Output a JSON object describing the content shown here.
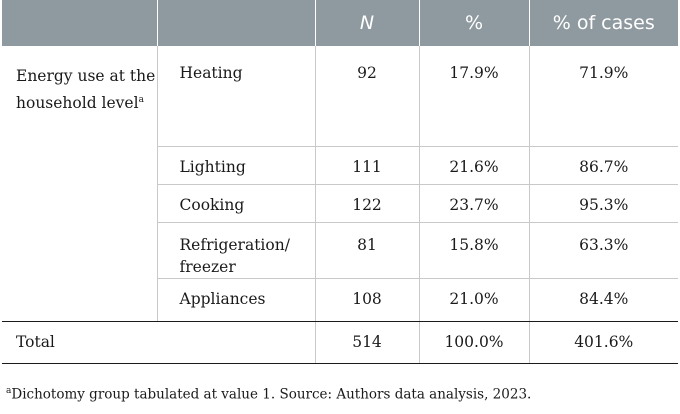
{
  "header": {
    "col_blank1": "",
    "col_blank2": "",
    "col_n": "N",
    "col_pct": "%",
    "col_pct_cases": "% of cases"
  },
  "group": {
    "label": "Energy use at the household level",
    "label_sup": "a"
  },
  "rows": [
    {
      "label": "Heating",
      "n": "92",
      "pct": "17.9%",
      "pct_cases": "71.9%"
    },
    {
      "label": "Lighting",
      "n": "111",
      "pct": "21.6%",
      "pct_cases": "86.7%"
    },
    {
      "label": "Cooking",
      "n": "122",
      "pct": "23.7%",
      "pct_cases": "95.3%"
    },
    {
      "label": "Refrigeration/ freezer",
      "n": "81",
      "pct": "15.8%",
      "pct_cases": "63.3%"
    },
    {
      "label": "Appliances",
      "n": "108",
      "pct": "21.0%",
      "pct_cases": "84.4%"
    }
  ],
  "total": {
    "label": "Total",
    "n": "514",
    "pct": "100.0%",
    "pct_cases": "401.6%"
  },
  "footnote": {
    "marker": "a",
    "text": "Dichotomy group tabulated at value 1. Source: Authors data analysis, 2023."
  },
  "colors": {
    "header_bg": "#8f9aa0",
    "header_text": "#ffffff",
    "rule": "#1a1a1a",
    "grid": "#c9c9c9"
  }
}
